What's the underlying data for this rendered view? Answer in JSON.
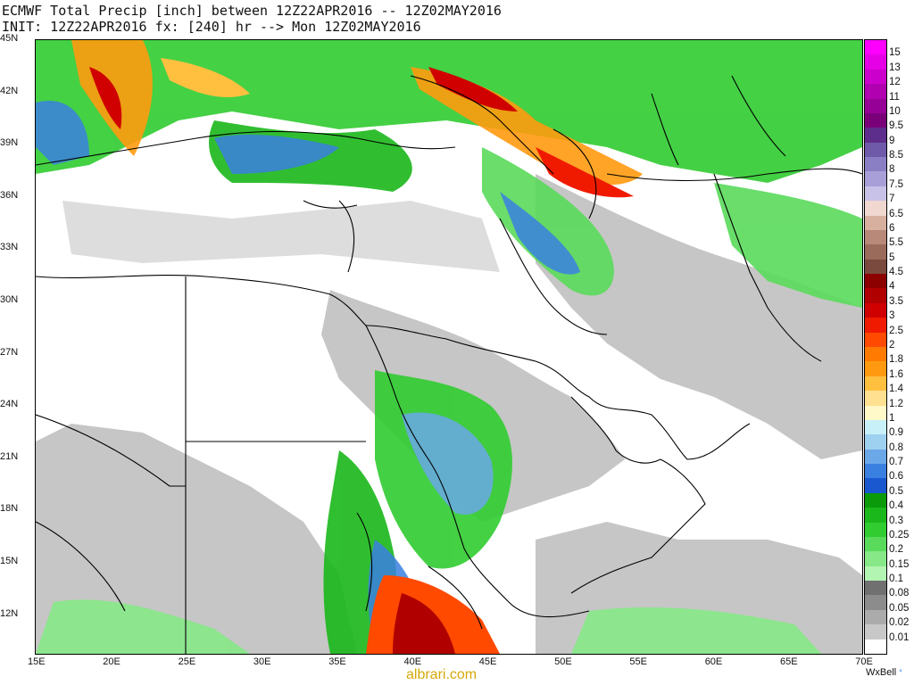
{
  "title": {
    "line1": "ECMWF Total Precip [inch] between 12Z22APR2016 -- 12Z02MAY2016",
    "line2": "INIT: 12Z22APR2016 fx: [240] hr --> Mon 12Z02MAY2016"
  },
  "lat_labels": [
    "45N",
    "42N",
    "39N",
    "36N",
    "33N",
    "30N",
    "27N",
    "24N",
    "21N",
    "18N",
    "15N",
    "12N"
  ],
  "lon_labels": [
    "15E",
    "20E",
    "25E",
    "30E",
    "35E",
    "40E",
    "45E",
    "50E",
    "55E",
    "60E",
    "65E",
    "70E"
  ],
  "legend": {
    "labels": [
      "15",
      "13",
      "12",
      "11",
      "10",
      "9.5",
      "9",
      "8.5",
      "8",
      "7.5",
      "7",
      "6.5",
      "6",
      "5.5",
      "5",
      "4.5",
      "4",
      "3.5",
      "3",
      "2.5",
      "2",
      "1.8",
      "1.6",
      "1.4",
      "1.2",
      "1",
      "0.9",
      "0.8",
      "0.7",
      "0.6",
      "0.5",
      "0.4",
      "0.3",
      "0.25",
      "0.2",
      "0.15",
      "0.1",
      "0.08",
      "0.05",
      "0.02",
      "0.01"
    ],
    "colors": [
      "#ff00ff",
      "#e600e6",
      "#cc00cc",
      "#b000b0",
      "#960096",
      "#7a007a",
      "#5e2e8c",
      "#6e5aa8",
      "#8a7fc4",
      "#a89fd8",
      "#c8c2e8",
      "#f0d8d0",
      "#d8b0a0",
      "#b88878",
      "#9a6a5a",
      "#7a4a3e",
      "#8c0000",
      "#b00000",
      "#d00000",
      "#f01a00",
      "#ff4a00",
      "#ff7a00",
      "#ff9a10",
      "#ffc040",
      "#ffe090",
      "#fff8c8",
      "#c8f0f8",
      "#9ed0f0",
      "#6aa8e8",
      "#3a80e0",
      "#1a58d0",
      "#0a9a0a",
      "#1ab81a",
      "#30cc30",
      "#5ada5a",
      "#86e886",
      "#b2f4b2",
      "#707070",
      "#8c8c8c",
      "#ababab",
      "#c8c8c8",
      "#ffffff"
    ]
  },
  "branding": {
    "wxbell": "WxBell",
    "watermark": "albrari.com"
  }
}
